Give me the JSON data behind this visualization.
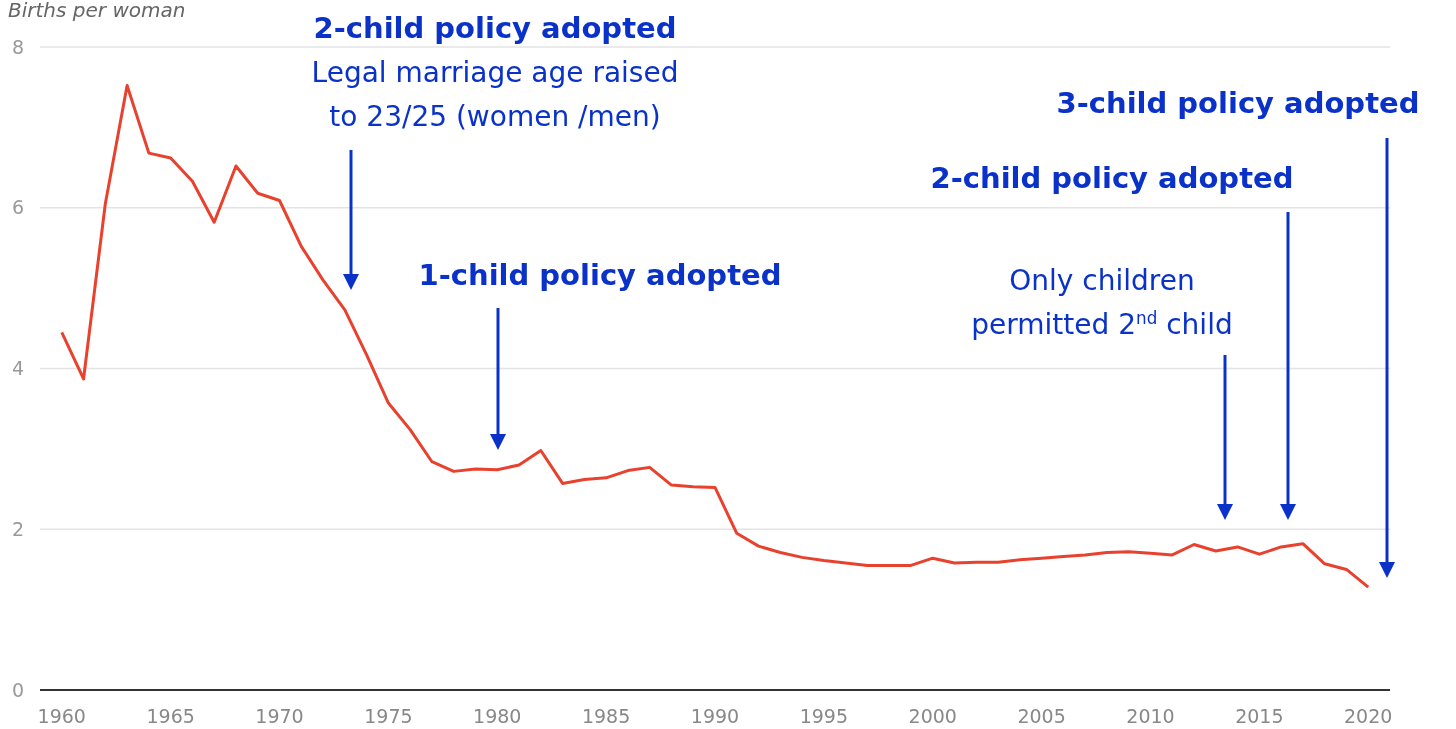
{
  "chart_data": {
    "type": "line",
    "ylabel": "Births per woman",
    "x": [
      1960,
      1961,
      1962,
      1963,
      1964,
      1965,
      1966,
      1967,
      1968,
      1969,
      1970,
      1971,
      1972,
      1973,
      1974,
      1975,
      1976,
      1977,
      1978,
      1979,
      1980,
      1981,
      1982,
      1983,
      1984,
      1985,
      1986,
      1987,
      1988,
      1989,
      1990,
      1991,
      1992,
      1993,
      1994,
      1995,
      1996,
      1997,
      1998,
      1999,
      2000,
      2001,
      2002,
      2003,
      2004,
      2005,
      2006,
      2007,
      2008,
      2009,
      2010,
      2011,
      2012,
      2013,
      2014,
      2015,
      2016,
      2017,
      2018,
      2019,
      2020
    ],
    "series": [
      {
        "color": "#e8412e",
        "values": [
          4.45,
          3.87,
          6.05,
          7.52,
          6.68,
          6.62,
          6.33,
          5.82,
          6.52,
          6.18,
          6.09,
          5.52,
          5.1,
          4.73,
          4.17,
          3.57,
          3.24,
          2.84,
          2.72,
          2.75,
          2.74,
          2.8,
          2.98,
          2.57,
          2.62,
          2.64,
          2.73,
          2.77,
          2.55,
          2.53,
          2.52,
          1.95,
          1.79,
          1.71,
          1.65,
          1.61,
          1.58,
          1.55,
          1.55,
          1.55,
          1.64,
          1.58,
          1.59,
          1.59,
          1.62,
          1.64,
          1.66,
          1.68,
          1.71,
          1.72,
          1.7,
          1.68,
          1.81,
          1.73,
          1.78,
          1.69,
          1.78,
          1.82,
          1.57,
          1.5,
          1.28
        ]
      }
    ],
    "xlim": [
      1959,
      2021
    ],
    "xticks": [
      1960,
      1965,
      1970,
      1975,
      1980,
      1985,
      1990,
      1995,
      2000,
      2005,
      2010,
      2015,
      2020
    ],
    "ylim": [
      0,
      8
    ],
    "yticks": [
      0,
      2,
      4,
      6,
      8
    ],
    "grid": "y",
    "marker": "none",
    "line_style": "solid",
    "annotations": [
      "2-child policy adopted",
      "Legal marriage age raised to 23/25 (women /men)",
      "1-child policy adopted",
      "Only children permitted 2$^{nd}$ child",
      "2-child policy adopted",
      "3-child policy adopted"
    ]
  }
}
